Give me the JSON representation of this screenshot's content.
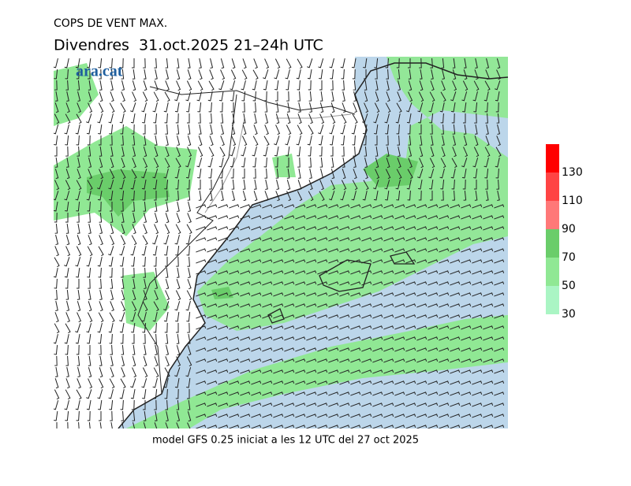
{
  "header": {
    "title": "COPS DE VENT MAX.",
    "subtitle": "Divendres  31.oct.2025 21–24h UTC",
    "logo": "ara.cat"
  },
  "footer": "model GFS 0.25 iniciat a les 12 UTC del 27 oct 2025",
  "legend": {
    "ticks": [
      30,
      50,
      70,
      90,
      110,
      130
    ],
    "colors": [
      "#aaf5c4",
      "#90e894",
      "#6acd6a",
      "#ff7878",
      "#ff4444",
      "#ff0000"
    ]
  }
}
